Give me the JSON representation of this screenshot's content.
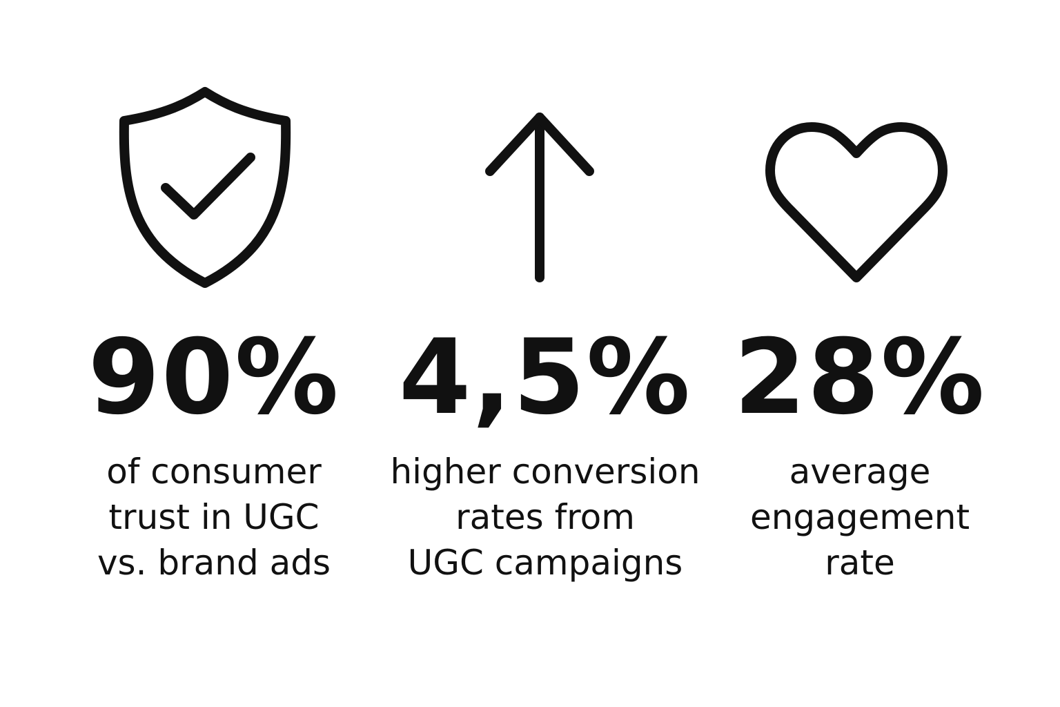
{
  "stats": [
    {
      "icon": "shield-check-icon",
      "value": "90%",
      "description_lines": [
        "of consumer",
        "trust in UGC",
        "vs. brand ads"
      ]
    },
    {
      "icon": "arrow-up-icon",
      "value": "4,5%",
      "description_lines": [
        "higher conversion",
        "rates from",
        "UGC campaigns"
      ]
    },
    {
      "icon": "heart-icon",
      "value": "28%",
      "description_lines": [
        "average",
        "engagement",
        "rate"
      ]
    }
  ],
  "colors": {
    "foreground": "#111111",
    "background": "#ffffff"
  }
}
